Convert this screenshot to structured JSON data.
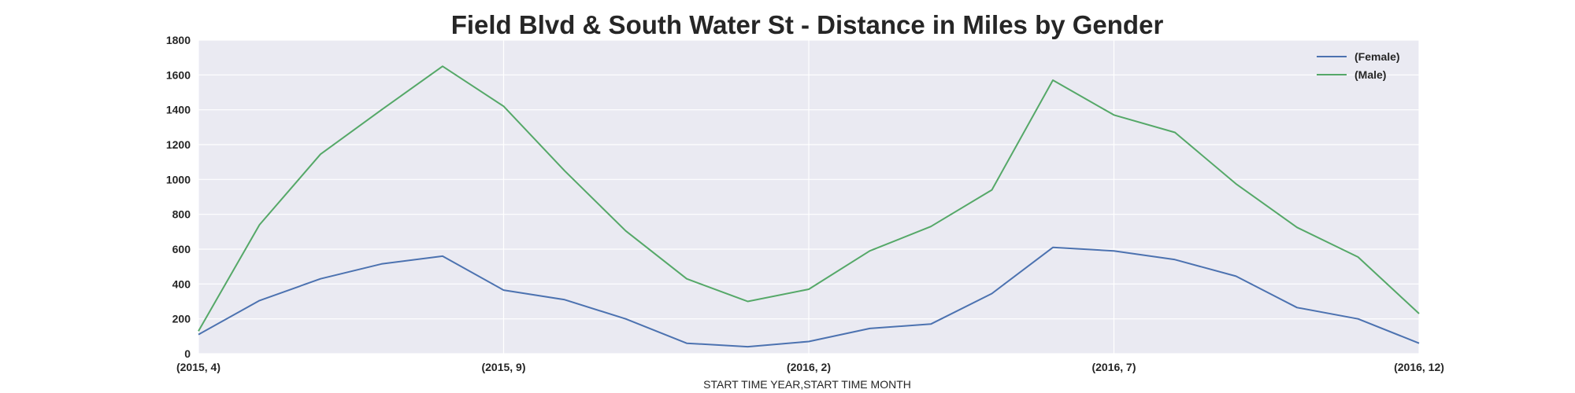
{
  "chart_data": {
    "type": "line",
    "title": "Field Blvd & South Water St - Distance in Miles by Gender",
    "xlabel": "START TIME YEAR,START TIME MONTH",
    "ylabel": "",
    "categories": [
      "(2015, 4)",
      "(2015, 5)",
      "(2015, 6)",
      "(2015, 7)",
      "(2015, 8)",
      "(2015, 9)",
      "(2015, 10)",
      "(2015, 11)",
      "(2015, 12)",
      "(2016, 1)",
      "(2016, 2)",
      "(2016, 3)",
      "(2016, 4)",
      "(2016, 5)",
      "(2016, 6)",
      "(2016, 7)",
      "(2016, 8)",
      "(2016, 9)",
      "(2016, 10)",
      "(2016, 11)",
      "(2016, 12)"
    ],
    "xtick_labels": [
      {
        "index": 0,
        "label": "(2015, 4)"
      },
      {
        "index": 5,
        "label": "(2015, 9)"
      },
      {
        "index": 10,
        "label": "(2016, 2)"
      },
      {
        "index": 15,
        "label": "(2016, 7)"
      },
      {
        "index": 20,
        "label": "(2016, 12)"
      }
    ],
    "yticks": [
      0,
      200,
      400,
      600,
      800,
      1000,
      1200,
      1400,
      1600,
      1800
    ],
    "ylim": [
      0,
      1800
    ],
    "grid": true,
    "legend_position": "top-right",
    "background_color": "#eaeaf2",
    "series": [
      {
        "name": "(Female)",
        "color": "#4c72b0",
        "values": [
          110,
          305,
          430,
          515,
          560,
          365,
          310,
          200,
          60,
          40,
          70,
          145,
          170,
          345,
          610,
          590,
          540,
          445,
          265,
          200,
          60
        ]
      },
      {
        "name": "(Male)",
        "color": "#55a868",
        "values": [
          130,
          740,
          1145,
          1400,
          1650,
          1420,
          1050,
          705,
          430,
          300,
          370,
          590,
          730,
          940,
          1570,
          1370,
          1270,
          975,
          725,
          555,
          230
        ]
      }
    ]
  }
}
